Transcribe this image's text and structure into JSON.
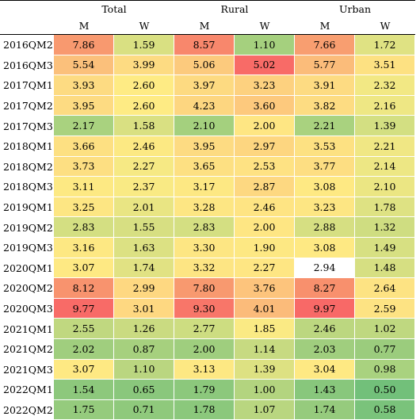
{
  "headers": {
    "groups": [
      "Total",
      "Rural",
      "Urban"
    ],
    "sub": [
      "M",
      "W",
      "M",
      "W",
      "M",
      "W"
    ]
  },
  "rows": [
    {
      "period": "2016QM2",
      "values": [
        "7.86",
        "1.59",
        "8.57",
        "1.10",
        "7.66",
        "1.72"
      ],
      "colors": [
        "#f8996f",
        "#d9e082",
        "#f8876c",
        "#a5d07e",
        "#f89e70",
        "#dfe283"
      ]
    },
    {
      "period": "2016QM3",
      "values": [
        "5.54",
        "3.99",
        "5.06",
        "5.02",
        "5.77",
        "3.51"
      ],
      "colors": [
        "#fbc07b",
        "#fddb82",
        "#fcca7d",
        "#f86b67",
        "#fbbc7a",
        "#fde182"
      ]
    },
    {
      "period": "2017QM1",
      "values": [
        "3.93",
        "2.60",
        "3.97",
        "3.23",
        "3.91",
        "2.32"
      ],
      "colors": [
        "#fddb82",
        "#feeb84",
        "#fdda81",
        "#fdd17f",
        "#fddb82",
        "#f2e884"
      ]
    },
    {
      "period": "2017QM2",
      "values": [
        "3.95",
        "2.60",
        "4.23",
        "3.60",
        "3.82",
        "2.16"
      ],
      "colors": [
        "#fddb82",
        "#feeb84",
        "#fdd680",
        "#fdc97d",
        "#fddc82",
        "#eee784"
      ]
    },
    {
      "period": "2017QM3",
      "values": [
        "2.17",
        "1.58",
        "2.10",
        "2.00",
        "2.21",
        "1.39"
      ],
      "colors": [
        "#a9d27f",
        "#d9e082",
        "#a4d07e",
        "#fee683",
        "#a9d27f",
        "#d3df82"
      ]
    },
    {
      "period": "2018QM1",
      "values": [
        "3.66",
        "2.46",
        "3.95",
        "2.97",
        "3.53",
        "2.21"
      ],
      "colors": [
        "#fde082",
        "#fce983",
        "#fddb82",
        "#fdd680",
        "#fde182",
        "#f0e784"
      ]
    },
    {
      "period": "2018QM2",
      "values": [
        "3.73",
        "2.27",
        "3.65",
        "2.53",
        "3.77",
        "2.14"
      ],
      "colors": [
        "#fddf82",
        "#f6e984",
        "#fde082",
        "#fee283",
        "#fdde82",
        "#ede784"
      ]
    },
    {
      "period": "2018QM3",
      "values": [
        "3.11",
        "2.37",
        "3.17",
        "2.87",
        "3.08",
        "2.10"
      ],
      "colors": [
        "#fde983",
        "#f9ea84",
        "#fde883",
        "#fdd881",
        "#fee983",
        "#ebe683"
      ]
    },
    {
      "period": "2019QM1",
      "values": [
        "3.25",
        "2.01",
        "3.28",
        "2.46",
        "3.23",
        "1.78"
      ],
      "colors": [
        "#fde683",
        "#e9e583",
        "#fde683",
        "#fee483",
        "#fde683",
        "#dee283"
      ]
    },
    {
      "period": "2019QM2",
      "values": [
        "2.83",
        "1.55",
        "2.83",
        "2.00",
        "2.88",
        "1.32"
      ],
      "colors": [
        "#d4df82",
        "#d7df82",
        "#d4df82",
        "#fee683",
        "#d6df82",
        "#cfdd81"
      ]
    },
    {
      "period": "2019QM3",
      "values": [
        "3.16",
        "1.63",
        "3.30",
        "1.90",
        "3.08",
        "1.49"
      ],
      "colors": [
        "#fde883",
        "#dce183",
        "#fde683",
        "#fde883",
        "#fee983",
        "#d7e082"
      ]
    },
    {
      "period": "2020QM1",
      "values": [
        "3.07",
        "1.74",
        "3.32",
        "2.27",
        "2.94",
        "1.48"
      ],
      "colors": [
        "#fee983",
        "#e1e283",
        "#fde583",
        "#fee683",
        "#daе082",
        "#d6df82"
      ]
    },
    {
      "period": "2020QM2",
      "values": [
        "8.12",
        "2.99",
        "7.80",
        "3.76",
        "8.27",
        "2.64"
      ],
      "colors": [
        "#f8936e",
        "#fed881",
        "#f8996f",
        "#fdc47c",
        "#f8906d",
        "#fde383"
      ]
    },
    {
      "period": "2020QM3",
      "values": [
        "9.77",
        "3.01",
        "9.30",
        "4.01",
        "9.97",
        "2.59"
      ],
      "colors": [
        "#f86b67",
        "#fed881",
        "#f87669",
        "#fbbb7a",
        "#f86967",
        "#fde383"
      ]
    },
    {
      "period": "2021QM1",
      "values": [
        "2.55",
        "1.26",
        "2.77",
        "1.85",
        "2.46",
        "1.02"
      ],
      "colors": [
        "#c0d880",
        "#cadb81",
        "#cddd81",
        "#faea84",
        "#bcd780",
        "#bfd880"
      ]
    },
    {
      "period": "2021QM2",
      "values": [
        "2.02",
        "0.87",
        "2.00",
        "1.14",
        "2.03",
        "0.77"
      ],
      "colors": [
        "#a0ce7e",
        "#a6d07e",
        "#9fce7e",
        "#c7da81",
        "#a0ce7e",
        "#9bcc7d"
      ]
    },
    {
      "period": "2021QM3",
      "values": [
        "3.07",
        "1.10",
        "3.13",
        "1.39",
        "3.04",
        "0.98"
      ],
      "colors": [
        "#fee983",
        "#bad680",
        "#fde883",
        "#dde182",
        "#fee983",
        "#a9d27f"
      ]
    },
    {
      "period": "2022QM1",
      "values": [
        "1.54",
        "0.65",
        "1.79",
        "1.00",
        "1.43",
        "0.50"
      ],
      "colors": [
        "#8dc87c",
        "#8ac77c",
        "#8cc87c",
        "#b3d47f",
        "#88c77c",
        "#72c07a"
      ]
    },
    {
      "period": "2022QM2",
      "values": [
        "1.75",
        "0.71",
        "1.78",
        "1.07",
        "1.74",
        "0.58"
      ],
      "colors": [
        "#95cb7d",
        "#8fc97c",
        "#8bc87c",
        "#b9d680",
        "#96cb7d",
        "#7ac37b"
      ]
    }
  ]
}
